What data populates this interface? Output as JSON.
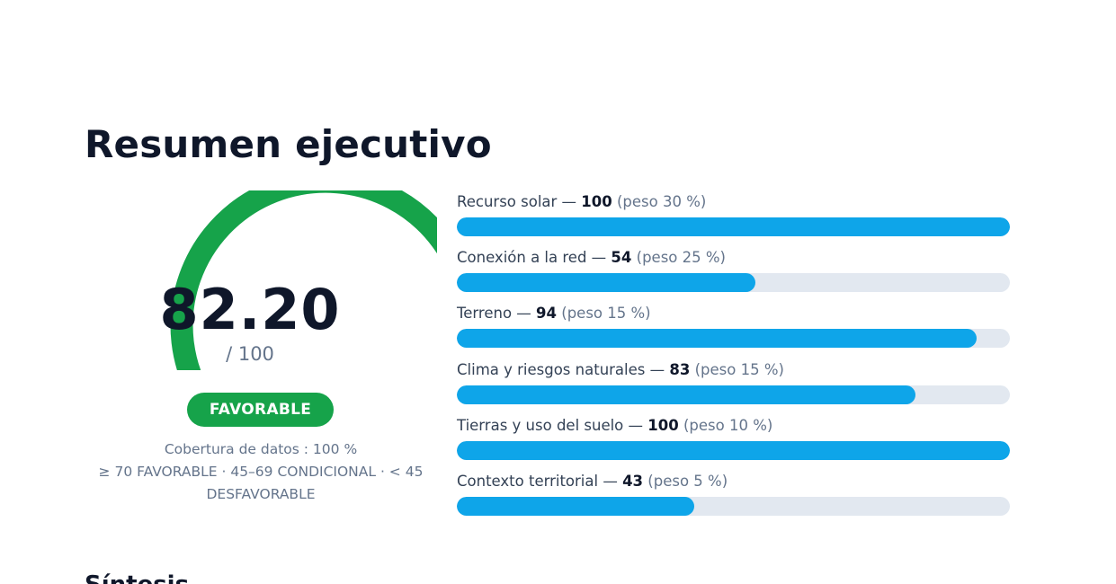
{
  "title": "Resumen ejecutivo",
  "score": {
    "value": "82.20",
    "max_label": "/ 100",
    "fraction": 0.822,
    "arc_color": "#16a34a",
    "track_color": "#e2e8f0"
  },
  "badge": {
    "label": "FAVORABLE",
    "color": "#16a34a"
  },
  "coverage": "Cobertura de datos : 100 %",
  "scale_legend": "≥ 70 FAVORABLE · 45–69 CONDICIONAL · < 45 DESFAVORABLE",
  "bar_color": "#0ea5e9",
  "criteria": [
    {
      "name": "Recurso solar",
      "score": 100,
      "weight": "(peso 30 %)"
    },
    {
      "name": "Conexión a la red",
      "score": 54,
      "weight": "(peso 25 %)"
    },
    {
      "name": "Terreno",
      "score": 94,
      "weight": "(peso 15 %)"
    },
    {
      "name": "Clima y riesgos naturales",
      "score": 83,
      "weight": "(peso 15 %)"
    },
    {
      "name": "Tierras y uso del suelo",
      "score": 100,
      "weight": "(peso 10 %)"
    },
    {
      "name": "Contexto territorial",
      "score": 43,
      "weight": "(peso 5 %)"
    }
  ],
  "next_section_title": "Síntesis"
}
